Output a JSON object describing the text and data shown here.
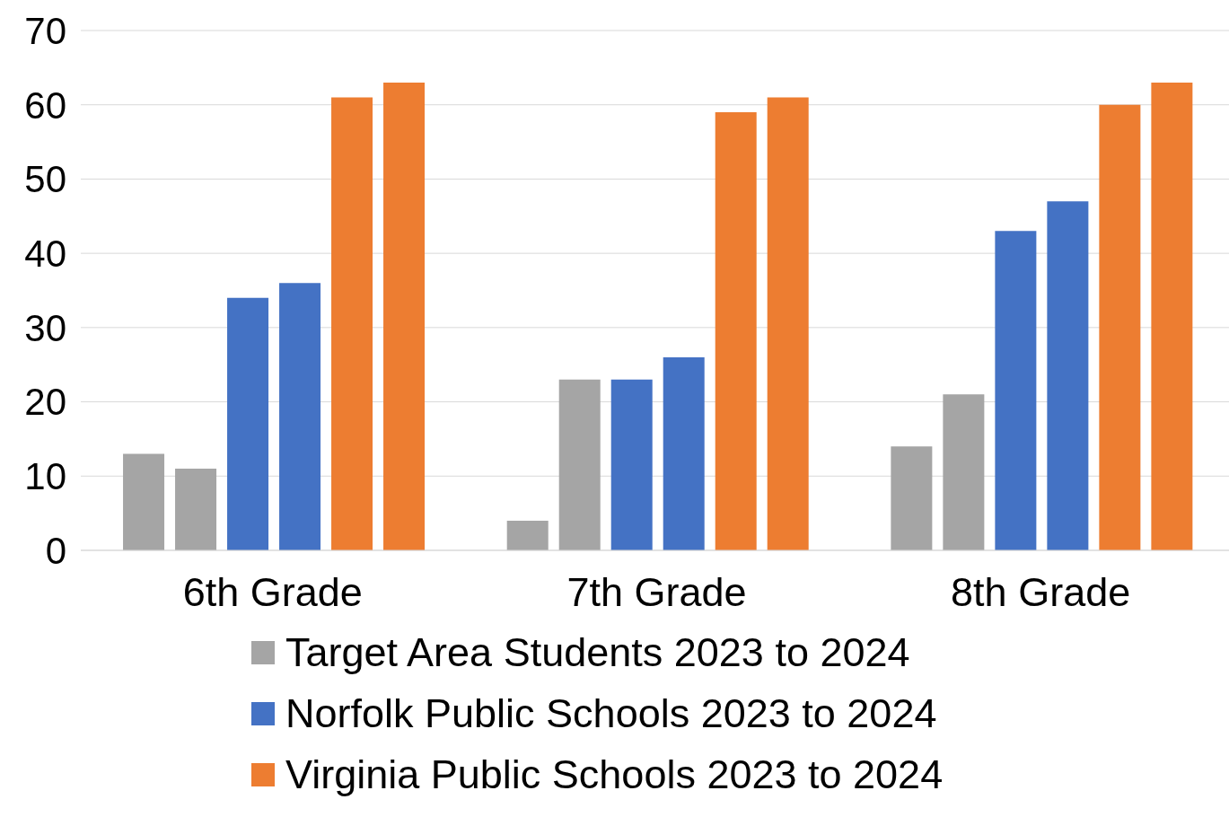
{
  "chart_data": {
    "type": "bar",
    "categories": [
      "6th Grade",
      "7th Grade",
      "8th Grade"
    ],
    "series": [
      {
        "name": "Target Area Students 2023 to 2024",
        "color": "#a5a5a5",
        "values": [
          13,
          4,
          14
        ]
      },
      {
        "color": "#a5a5a5",
        "values": [
          11,
          23,
          21
        ]
      },
      {
        "name": "Norfolk Public Schools 2023 to 2024",
        "color": "#4472c4",
        "values": [
          34,
          23,
          43
        ]
      },
      {
        "color": "#4472c4",
        "values": [
          36,
          26,
          47
        ]
      },
      {
        "name": "Virginia Public Schools 2023 to 2024",
        "color": "#ed7d31",
        "values": [
          61,
          59,
          60
        ]
      },
      {
        "color": "#ed7d31",
        "values": [
          63,
          61,
          63
        ]
      }
    ],
    "ylim": [
      0,
      70
    ],
    "yticks": [
      0,
      10,
      20,
      30,
      40,
      50,
      60,
      70
    ],
    "grid": "y",
    "legend": "bottom"
  }
}
